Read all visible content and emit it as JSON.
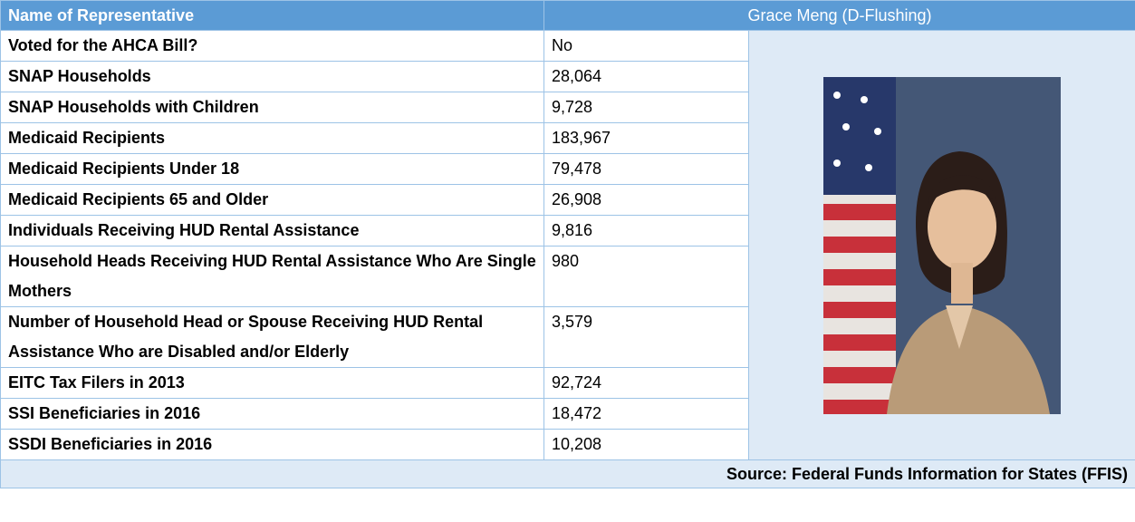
{
  "header": {
    "label": "Name of Representative",
    "value": "Grace Meng (D-Flushing)"
  },
  "table": {
    "rows": [
      [
        "Voted for the AHCA Bill?",
        "No"
      ],
      [
        "SNAP Households",
        "28,064"
      ],
      [
        "SNAP Households with Children",
        "9,728"
      ],
      [
        "Medicaid Recipients",
        "183,967"
      ],
      [
        "Medicaid Recipients Under 18",
        "79,478"
      ],
      [
        "Medicaid Recipients 65 and Older",
        "26,908"
      ],
      [
        "Individuals Receiving HUD Rental Assistance",
        "9,816"
      ],
      [
        "Household Heads Receiving HUD Rental Assistance Who Are Single Mothers",
        "980"
      ],
      [
        "Number of Household Head or Spouse Receiving HUD Rental Assistance Who are Disabled and/or Elderly",
        "3,579"
      ],
      [
        "EITC Tax Filers in 2013",
        "92,724"
      ],
      [
        "SSI Beneficiaries in 2016",
        "18,472"
      ],
      [
        "SSDI Beneficiaries in 2016",
        "10,208"
      ]
    ]
  },
  "source": "Source: Federal Funds Information for States (FFIS)"
}
